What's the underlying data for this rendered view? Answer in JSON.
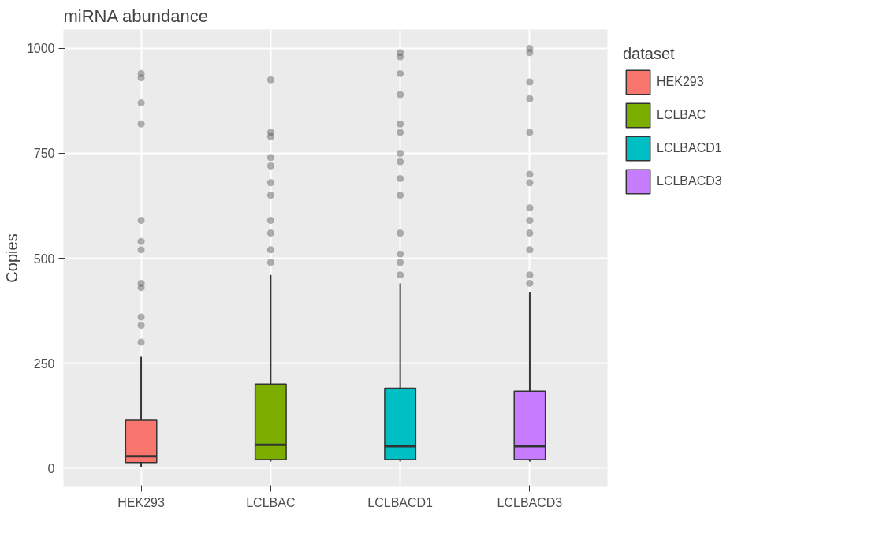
{
  "chart_data": {
    "type": "box",
    "title": "miRNA abundance",
    "ylabel": "Copies",
    "legend_title": "dataset",
    "categories": [
      "HEK293",
      "LCLBAC",
      "LCLBACD1",
      "LCLBACD3"
    ],
    "series": [
      {
        "name": "HEK293",
        "color": "#f8766d",
        "boxes": [
          {
            "low": 3,
            "q1": 13,
            "median": 28,
            "q3": 114,
            "high": 265,
            "outliers": [
              940,
              930,
              870,
              820,
              590,
              540,
              520,
              440,
              430,
              360,
              340,
              300
            ]
          },
          null,
          null,
          null
        ]
      },
      {
        "name": "LCLBAC",
        "color": "#7cae00",
        "boxes": [
          null,
          {
            "low": 15,
            "q1": 20,
            "median": 55,
            "q3": 200,
            "high": 460,
            "outliers": [
              925,
              800,
              790,
              740,
              720,
              680,
              650,
              590,
              560,
              520,
              490
            ]
          },
          null,
          null
        ]
      },
      {
        "name": "LCLBACD1",
        "color": "#00bfc4",
        "boxes": [
          null,
          null,
          {
            "low": 15,
            "q1": 20,
            "median": 52,
            "q3": 190,
            "high": 440,
            "outliers": [
              990,
              980,
              940,
              890,
              820,
              800,
              750,
              730,
              690,
              650,
              560,
              510,
              490,
              460
            ]
          },
          null
        ]
      },
      {
        "name": "LCLBACD3",
        "color": "#c77cff",
        "boxes": [
          null,
          null,
          null,
          {
            "low": 15,
            "q1": 20,
            "median": 52,
            "q3": 183,
            "high": 420,
            "outliers": [
              1000,
              990,
              920,
              880,
              800,
              700,
              680,
              620,
              590,
              560,
              520,
              460,
              440
            ]
          }
        ]
      }
    ],
    "ylim": [
      -45,
      1045
    ],
    "yticks": [
      0,
      250,
      500,
      750,
      1000
    ],
    "grid": true,
    "legend": "right"
  }
}
